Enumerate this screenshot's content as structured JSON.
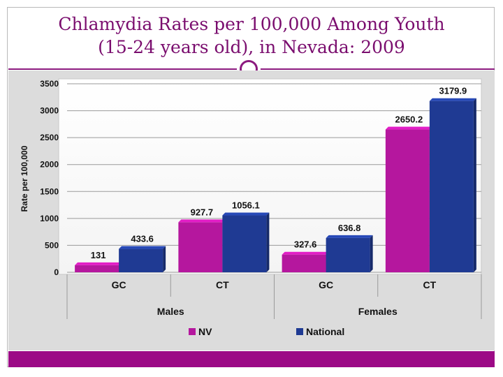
{
  "slide": {
    "title_line1": "Chlamydia Rates per 100,000 Among Youth",
    "title_line2": "(15-24 years old), in Nevada: 2009"
  },
  "colors": {
    "accent": "#8c1a7f",
    "bottom_bar": "#9c0a86"
  },
  "chart_data": {
    "type": "bar",
    "title": "",
    "xlabel": "",
    "ylabel": "Rate per 100,000",
    "ylim": [
      0,
      3500
    ],
    "yticks": [
      0,
      500,
      1000,
      1500,
      2000,
      2500,
      3000,
      3500
    ],
    "grid": true,
    "legend_position": "bottom",
    "groups": [
      "Males",
      "Females"
    ],
    "categories": [
      "GC",
      "CT",
      "GC",
      "CT"
    ],
    "category_groups": [
      "Males",
      "Males",
      "Females",
      "Females"
    ],
    "series": [
      {
        "name": "NV",
        "color": "#b5179e",
        "values": [
          131,
          927.7,
          327.6,
          2650.2
        ],
        "labels": [
          "131",
          "927.7",
          "327.6",
          "2650.2"
        ]
      },
      {
        "name": "National",
        "color": "#1f3a93",
        "values": [
          433.6,
          1056.1,
          636.8,
          3179.9
        ],
        "labels": [
          "433.6",
          "1056.1",
          "636.8",
          "3179.9"
        ]
      }
    ]
  }
}
